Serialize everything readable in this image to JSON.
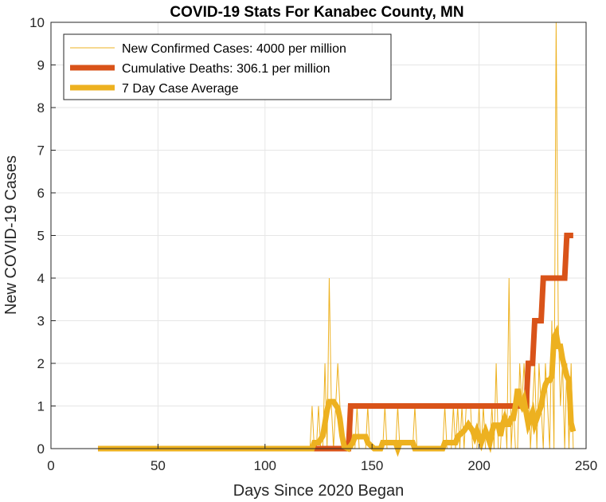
{
  "chart_data": {
    "type": "line",
    "title": "COVID-19 Stats For Kanabec County, MN",
    "xlabel": "Days Since 2020 Began",
    "ylabel": "New COVID-19 Cases",
    "xlim": [
      0,
      250
    ],
    "ylim": [
      0,
      10
    ],
    "xticks": [
      0,
      50,
      100,
      150,
      200,
      250
    ],
    "yticks": [
      0,
      1,
      2,
      3,
      4,
      5,
      6,
      7,
      8,
      9,
      10
    ],
    "grid": true,
    "legend_position": "top-left",
    "series": [
      {
        "name": "New Confirmed Cases: 4000 per million",
        "color": "#EDB120",
        "points": [
          [
            22,
            0
          ],
          [
            121,
            0
          ],
          [
            122,
            1
          ],
          [
            123,
            0
          ],
          [
            124,
            0
          ],
          [
            125,
            1
          ],
          [
            126,
            0
          ],
          [
            127,
            0
          ],
          [
            128,
            2
          ],
          [
            129,
            0
          ],
          [
            130,
            4
          ],
          [
            131,
            1
          ],
          [
            132,
            0
          ],
          [
            133,
            1
          ],
          [
            134,
            2
          ],
          [
            135,
            1
          ],
          [
            136,
            0
          ],
          [
            137,
            0
          ],
          [
            138,
            0
          ],
          [
            139,
            0
          ],
          [
            140,
            1
          ],
          [
            141,
            0
          ],
          [
            142,
            0
          ],
          [
            143,
            1
          ],
          [
            144,
            0
          ],
          [
            145,
            0
          ],
          [
            146,
            0
          ],
          [
            147,
            0
          ],
          [
            148,
            1
          ],
          [
            149,
            0
          ],
          [
            150,
            0
          ],
          [
            151,
            0
          ],
          [
            152,
            0
          ],
          [
            153,
            0
          ],
          [
            154,
            0
          ],
          [
            155,
            0
          ],
          [
            156,
            1
          ],
          [
            157,
            0
          ],
          [
            158,
            0
          ],
          [
            159,
            0
          ],
          [
            160,
            0
          ],
          [
            161,
            0
          ],
          [
            162,
            1
          ],
          [
            163,
            0
          ],
          [
            164,
            0
          ],
          [
            165,
            0
          ],
          [
            166,
            0
          ],
          [
            167,
            0
          ],
          [
            168,
            0
          ],
          [
            169,
            0
          ],
          [
            170,
            1
          ],
          [
            171,
            0
          ],
          [
            172,
            0
          ],
          [
            173,
            0
          ],
          [
            174,
            0
          ],
          [
            175,
            0
          ],
          [
            176,
            0
          ],
          [
            177,
            0
          ],
          [
            178,
            0
          ],
          [
            179,
            0
          ],
          [
            180,
            0
          ],
          [
            181,
            0
          ],
          [
            182,
            0
          ],
          [
            183,
            0
          ],
          [
            184,
            1
          ],
          [
            185,
            0
          ],
          [
            186,
            0
          ],
          [
            187,
            0
          ],
          [
            188,
            1
          ],
          [
            189,
            0
          ],
          [
            190,
            1
          ],
          [
            191,
            0
          ],
          [
            192,
            1
          ],
          [
            193,
            0
          ],
          [
            194,
            1
          ],
          [
            195,
            1
          ],
          [
            196,
            1
          ],
          [
            197,
            0
          ],
          [
            198,
            0
          ],
          [
            199,
            0
          ],
          [
            200,
            1
          ],
          [
            201,
            0
          ],
          [
            202,
            1
          ],
          [
            203,
            0
          ],
          [
            204,
            0
          ],
          [
            205,
            0
          ],
          [
            206,
            1
          ],
          [
            207,
            0
          ],
          [
            208,
            2
          ],
          [
            209,
            0
          ],
          [
            210,
            0
          ],
          [
            211,
            1
          ],
          [
            212,
            1
          ],
          [
            213,
            0
          ],
          [
            214,
            4
          ],
          [
            215,
            0
          ],
          [
            216,
            1
          ],
          [
            217,
            0
          ],
          [
            218,
            0
          ],
          [
            219,
            2
          ],
          [
            220,
            1
          ],
          [
            221,
            2
          ],
          [
            222,
            1
          ],
          [
            223,
            2
          ],
          [
            224,
            0
          ],
          [
            225,
            1
          ],
          [
            226,
            2
          ],
          [
            227,
            0
          ],
          [
            228,
            2
          ],
          [
            229,
            1
          ],
          [
            230,
            0
          ],
          [
            231,
            2
          ],
          [
            232,
            1
          ],
          [
            233,
            0
          ],
          [
            234,
            3
          ],
          [
            235,
            0
          ],
          [
            236,
            10
          ],
          [
            237,
            3
          ],
          [
            238,
            1
          ],
          [
            239,
            2
          ],
          [
            240,
            0
          ],
          [
            241,
            2
          ],
          [
            242,
            0
          ],
          [
            243,
            2
          ],
          [
            244,
            0
          ]
        ]
      },
      {
        "name": "Cumulative Deaths: 306.1 per million",
        "color": "#D95319",
        "points": [
          [
            22,
            0
          ],
          [
            139,
            0
          ],
          [
            140,
            1
          ],
          [
            218,
            1
          ],
          [
            219,
            1
          ],
          [
            220,
            1
          ],
          [
            221,
            1
          ],
          [
            222,
            1
          ],
          [
            223,
            2
          ],
          [
            225,
            2
          ],
          [
            226,
            3
          ],
          [
            229,
            3
          ],
          [
            230,
            4
          ],
          [
            240,
            4
          ],
          [
            241,
            5
          ],
          [
            244,
            5
          ]
        ]
      },
      {
        "name": "7 Day Case Average",
        "color": "#EDB120",
        "points": [
          [
            22,
            0
          ],
          [
            122,
            0
          ],
          [
            123,
            0.14
          ],
          [
            125,
            0.14
          ],
          [
            127,
            0.3
          ],
          [
            128,
            0.6
          ],
          [
            129,
            0.9
          ],
          [
            130,
            1.1
          ],
          [
            132,
            1.1
          ],
          [
            134,
            0.95
          ],
          [
            135,
            0.7
          ],
          [
            136,
            0.3
          ],
          [
            137,
            0.05
          ],
          [
            139,
            0
          ],
          [
            141,
            0.14
          ],
          [
            142,
            0.28
          ],
          [
            147,
            0.28
          ],
          [
            148,
            0.14
          ],
          [
            151,
            0
          ],
          [
            154,
            0
          ],
          [
            155,
            0.14
          ],
          [
            161,
            0.14
          ],
          [
            162,
            0
          ],
          [
            163,
            0.14
          ],
          [
            169,
            0.14
          ],
          [
            170,
            0
          ],
          [
            176,
            0
          ],
          [
            177,
            0
          ],
          [
            183,
            0
          ],
          [
            184,
            0.14
          ],
          [
            189,
            0.14
          ],
          [
            190,
            0.28
          ],
          [
            193,
            0.42
          ],
          [
            195,
            0.57
          ],
          [
            197,
            0.42
          ],
          [
            198,
            0.28
          ],
          [
            199,
            0.42
          ],
          [
            200,
            0.28
          ],
          [
            201,
            0.14
          ],
          [
            202,
            0.3
          ],
          [
            203,
            0.42
          ],
          [
            204,
            0.28
          ],
          [
            205,
            0.14
          ],
          [
            206,
            0.4
          ],
          [
            207,
            0.55
          ],
          [
            209,
            0.55
          ],
          [
            210,
            0.3
          ],
          [
            211,
            0.57
          ],
          [
            212,
            0.71
          ],
          [
            213,
            0.57
          ],
          [
            214,
            0.57
          ],
          [
            215,
            0.71
          ],
          [
            216,
            0.71
          ],
          [
            217,
            1.0
          ],
          [
            218,
            1.4
          ],
          [
            219,
            1.1
          ],
          [
            220,
            1.0
          ],
          [
            221,
            1.14
          ],
          [
            222,
            0.85
          ],
          [
            223,
            0.57
          ],
          [
            224,
            0.71
          ],
          [
            225,
            0.85
          ],
          [
            226,
            0.57
          ],
          [
            227,
            0.71
          ],
          [
            228,
            0.86
          ],
          [
            229,
            1.0
          ],
          [
            230,
            1.3
          ],
          [
            231,
            1.5
          ],
          [
            232,
            1.6
          ],
          [
            233,
            1.6
          ],
          [
            234,
            1.7
          ],
          [
            235,
            2.6
          ],
          [
            236,
            2.7
          ],
          [
            237,
            2.4
          ],
          [
            238,
            2.4
          ],
          [
            239,
            2.1
          ],
          [
            240,
            1.9
          ],
          [
            241,
            1.7
          ],
          [
            242,
            1.6
          ],
          [
            243,
            0.6
          ],
          [
            244,
            0.4
          ]
        ]
      }
    ]
  }
}
